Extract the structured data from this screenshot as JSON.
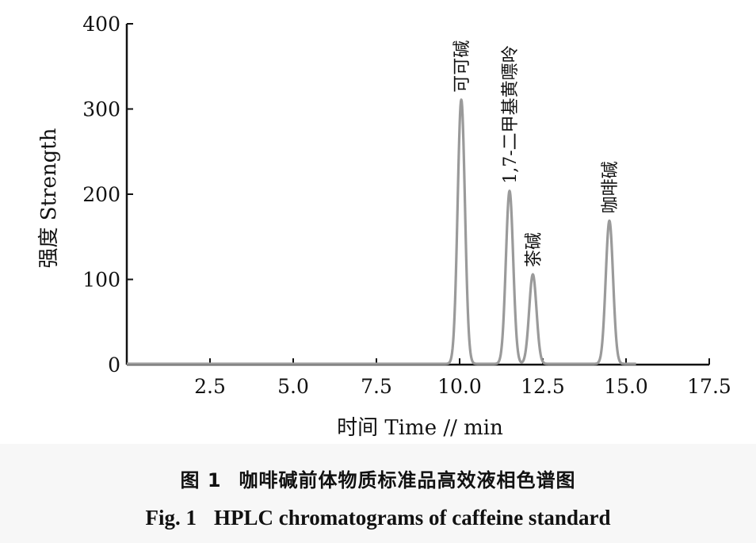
{
  "chart_data": {
    "type": "line",
    "xlabel": "时间 Time // min",
    "ylabel": "强度 Strength",
    "xlim": [
      0,
      17.5
    ],
    "ylim": [
      0,
      400
    ],
    "xticks": [
      2.5,
      5.0,
      7.5,
      10.0,
      12.5,
      15.0,
      17.5
    ],
    "xtick_labels": [
      "2.5",
      "5.0",
      "7.5",
      "10.0",
      "12.5",
      "15.0",
      "17.5"
    ],
    "yticks": [
      0,
      100,
      200,
      300,
      400
    ],
    "ytick_labels": [
      "0",
      "100",
      "200",
      "300",
      "400"
    ],
    "grid": false,
    "line_color": "#9a9a9a",
    "peaks": [
      {
        "label": "可可碱",
        "retention_time": 10.05,
        "height": 310
      },
      {
        "label": "1,7-二甲基黄嘌呤",
        "retention_time": 11.5,
        "height": 203
      },
      {
        "label": "茶碱",
        "retention_time": 12.2,
        "height": 105
      },
      {
        "label": "咖啡碱",
        "retention_time": 14.5,
        "height": 168
      }
    ]
  },
  "caption": {
    "cn_number": "图 1",
    "cn_title": "咖啡碱前体物质标准品高效液相色谱图",
    "en_number": "Fig. 1",
    "en_title": "HPLC chromatograms of caffeine standard"
  }
}
